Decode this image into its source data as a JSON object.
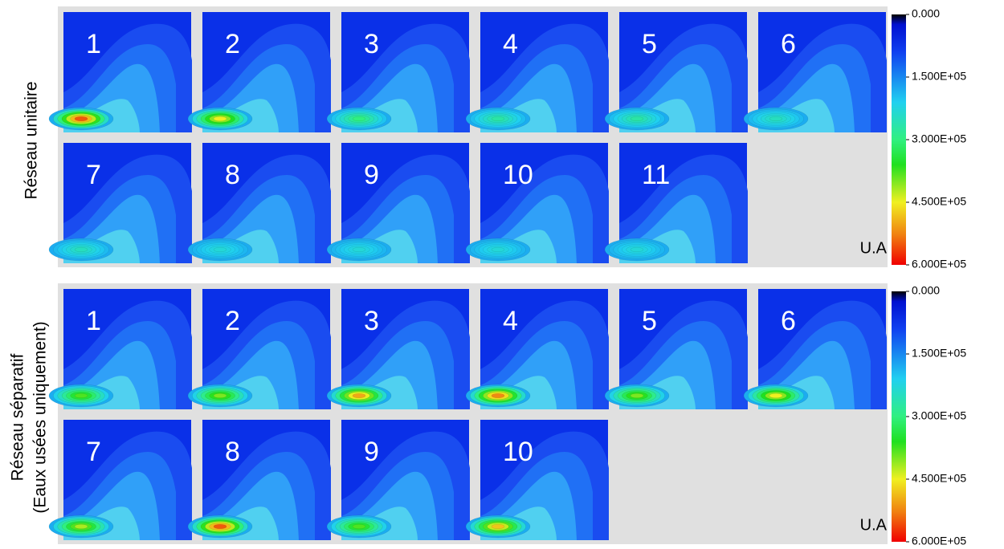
{
  "groups": [
    {
      "label_lines": [
        "Réseau unitaire"
      ],
      "panels": [
        {
          "label": "1",
          "peak": 550000
        },
        {
          "label": "2",
          "peak": 450000
        },
        {
          "label": "3",
          "peak": 300000
        },
        {
          "label": "4",
          "peak": 270000
        },
        {
          "label": "5",
          "peak": 270000
        },
        {
          "label": "6",
          "peak": 250000
        },
        {
          "label": "7",
          "peak": 250000
        },
        {
          "label": "8",
          "peak": 230000
        },
        {
          "label": "9",
          "peak": 230000
        },
        {
          "label": "10",
          "peak": 230000
        },
        {
          "label": "11",
          "peak": 230000
        }
      ],
      "colorbar": {
        "lim": [
          0,
          600000
        ],
        "ticks": [
          {
            "value": 0,
            "label": "0.000"
          },
          {
            "value": 150000,
            "label": "1.500E+05"
          },
          {
            "value": 300000,
            "label": "3.000E+05"
          },
          {
            "value": 450000,
            "label": "4.500E+05"
          },
          {
            "value": 600000,
            "label": "6.000E+05"
          }
        ],
        "unit": "U.A"
      }
    },
    {
      "label_lines": [
        "Réseau séparatif",
        "(Eaux usées uniquement)"
      ],
      "panels": [
        {
          "label": "1",
          "peak": 380000
        },
        {
          "label": "2",
          "peak": 400000
        },
        {
          "label": "3",
          "peak": 500000
        },
        {
          "label": "4",
          "peak": 520000
        },
        {
          "label": "5",
          "peak": 400000
        },
        {
          "label": "6",
          "peak": 450000
        },
        {
          "label": "7",
          "peak": 420000
        },
        {
          "label": "8",
          "peak": 550000
        },
        {
          "label": "9",
          "peak": 380000
        },
        {
          "label": "10",
          "peak": 480000
        }
      ],
      "colorbar": {
        "lim": [
          0,
          600000
        ],
        "ticks": [
          {
            "value": 0,
            "label": "0.000"
          },
          {
            "value": 150000,
            "label": "1.500E+05"
          },
          {
            "value": 300000,
            "label": "3.000E+05"
          },
          {
            "value": 450000,
            "label": "4.500E+05"
          },
          {
            "value": 600000,
            "label": "6.000E+05"
          }
        ],
        "unit": "U.A"
      }
    }
  ]
}
